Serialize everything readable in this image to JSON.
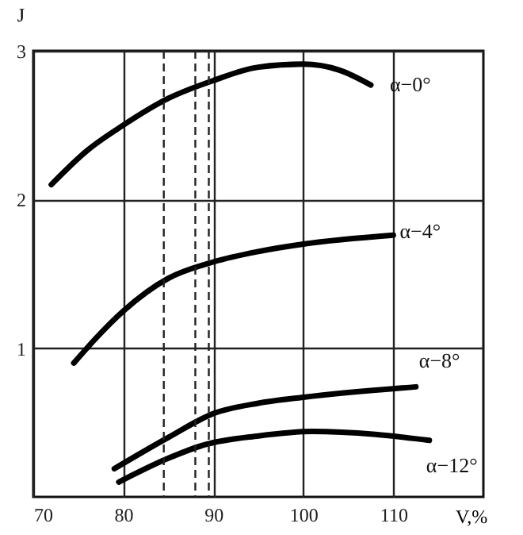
{
  "chart_data": {
    "type": "line",
    "xlabel": "V,%",
    "ylabel": "J",
    "xlim": [
      70,
      120
    ],
    "xticks": [
      70,
      80,
      90,
      100,
      110
    ],
    "ylim": [
      0,
      3
    ],
    "yticks": [
      1,
      2,
      3
    ],
    "grid": true,
    "line_style": "solid",
    "series": [
      {
        "name": "α−0°",
        "color": "#000000",
        "x": [
          72,
          76,
          80,
          85,
          90,
          95,
          100,
          104,
          107.5
        ],
        "values": [
          2.1,
          2.33,
          2.5,
          2.68,
          2.8,
          2.89,
          2.91,
          2.87,
          2.77
        ]
      },
      {
        "name": "α−4°",
        "color": "#000000",
        "x": [
          74.5,
          77,
          80,
          85,
          90,
          95,
          100,
          110
        ],
        "values": [
          0.9,
          1.07,
          1.25,
          1.47,
          1.58,
          1.65,
          1.7,
          1.76
        ]
      },
      {
        "name": "α−8°",
        "color": "#000000",
        "x": [
          79,
          85,
          90,
          95,
          100,
          112.5
        ],
        "values": [
          0.19,
          0.4,
          0.56,
          0.63,
          0.67,
          0.74
        ]
      },
      {
        "name": "α−12°",
        "color": "#000000",
        "x": [
          79.5,
          85,
          89,
          95,
          101,
          108,
          114
        ],
        "values": [
          0.1,
          0.26,
          0.35,
          0.41,
          0.44,
          0.42,
          0.38
        ]
      }
    ],
    "ref_lines": [
      {
        "axis": "x",
        "value": 84.5,
        "line_style": "dashed"
      },
      {
        "axis": "x",
        "value": 88,
        "line_style": "dashed"
      },
      {
        "axis": "x",
        "value": 89.5,
        "line_style": "dashed"
      }
    ]
  }
}
